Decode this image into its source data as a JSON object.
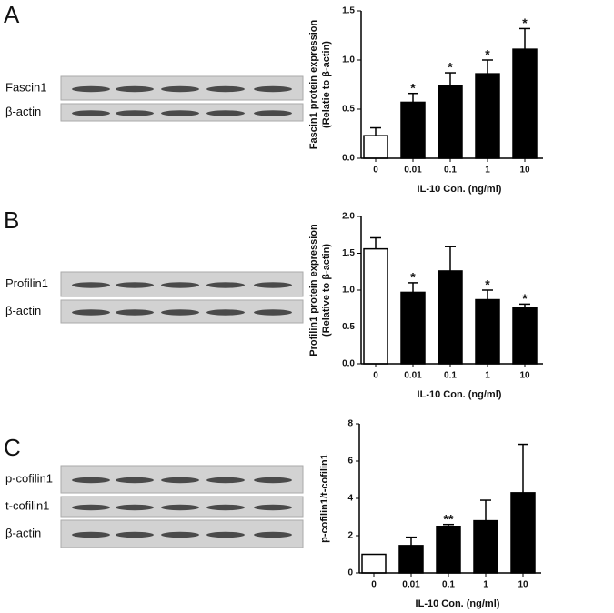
{
  "blots": [
    {
      "letter": "A",
      "labels": [
        "Fascin1",
        "β-actin"
      ]
    },
    {
      "letter": "B",
      "labels": [
        "Profilin1",
        "β-actin"
      ]
    },
    {
      "letter": "C",
      "labels": [
        "p-cofilin1",
        "t-cofilin1",
        "β-actin"
      ]
    }
  ],
  "chart_data": [
    {
      "type": "bar",
      "ylabel": [
        "Fascin1 protein expression",
        "(Relatie to β-actin)"
      ],
      "xlabel": "IL-10 Con. (ng/ml)",
      "categories": [
        "0",
        "0.01",
        "0.1",
        "1",
        "10"
      ],
      "values": [
        0.23,
        0.57,
        0.74,
        0.86,
        1.11
      ],
      "errors": [
        0.08,
        0.09,
        0.13,
        0.14,
        0.21
      ],
      "colors": [
        "#ffffff",
        "#000000",
        "#000000",
        "#000000",
        "#000000"
      ],
      "annotations": [
        {
          "index": 1,
          "text": "*"
        },
        {
          "index": 2,
          "text": "*"
        },
        {
          "index": 3,
          "text": "*"
        },
        {
          "index": 4,
          "text": "*"
        }
      ],
      "ylim": [
        0,
        1.5
      ],
      "yticks": [
        {
          "value": 0,
          "label": "0.0"
        },
        0.5,
        {
          "value": 1,
          "label": "1.0"
        },
        1.5
      ]
    },
    {
      "type": "bar",
      "ylabel": [
        "Profilin1 protein expression",
        "(Relative to β-actin)"
      ],
      "xlabel": "IL-10 Con. (ng/ml)",
      "categories": [
        "0",
        "0.01",
        "0.1",
        "1",
        "10"
      ],
      "values": [
        1.56,
        0.97,
        1.26,
        0.87,
        0.76
      ],
      "errors": [
        0.15,
        0.13,
        0.33,
        0.13,
        0.05
      ],
      "colors": [
        "#ffffff",
        "#000000",
        "#000000",
        "#000000",
        "#000000"
      ],
      "annotations": [
        {
          "index": 1,
          "text": "*"
        },
        {
          "index": 3,
          "text": "*"
        },
        {
          "index": 4,
          "text": "*"
        }
      ],
      "ylim": [
        0,
        2
      ],
      "yticks": [
        {
          "value": 0,
          "label": "0.0"
        },
        0.5,
        {
          "value": 1,
          "label": "1.0"
        },
        1.5,
        {
          "value": 2,
          "label": "2.0"
        }
      ]
    },
    {
      "type": "bar",
      "ylabel": [
        "p-cofilin1/t-cofilin1"
      ],
      "xlabel": "IL-10 Con. (ng/ml)",
      "categories": [
        "0",
        "0.01",
        "0.1",
        "1",
        "10"
      ],
      "values": [
        1.0,
        1.47,
        2.5,
        2.8,
        4.3
      ],
      "errors": [
        null,
        0.45,
        0.1,
        1.1,
        2.6
      ],
      "colors": [
        "#ffffff",
        "#000000",
        "#000000",
        "#000000",
        "#000000"
      ],
      "annotations": [
        {
          "index": 2,
          "text": "**"
        }
      ],
      "ylim": [
        0,
        8
      ],
      "yticks": [
        0,
        2,
        4,
        6,
        8
      ]
    }
  ]
}
